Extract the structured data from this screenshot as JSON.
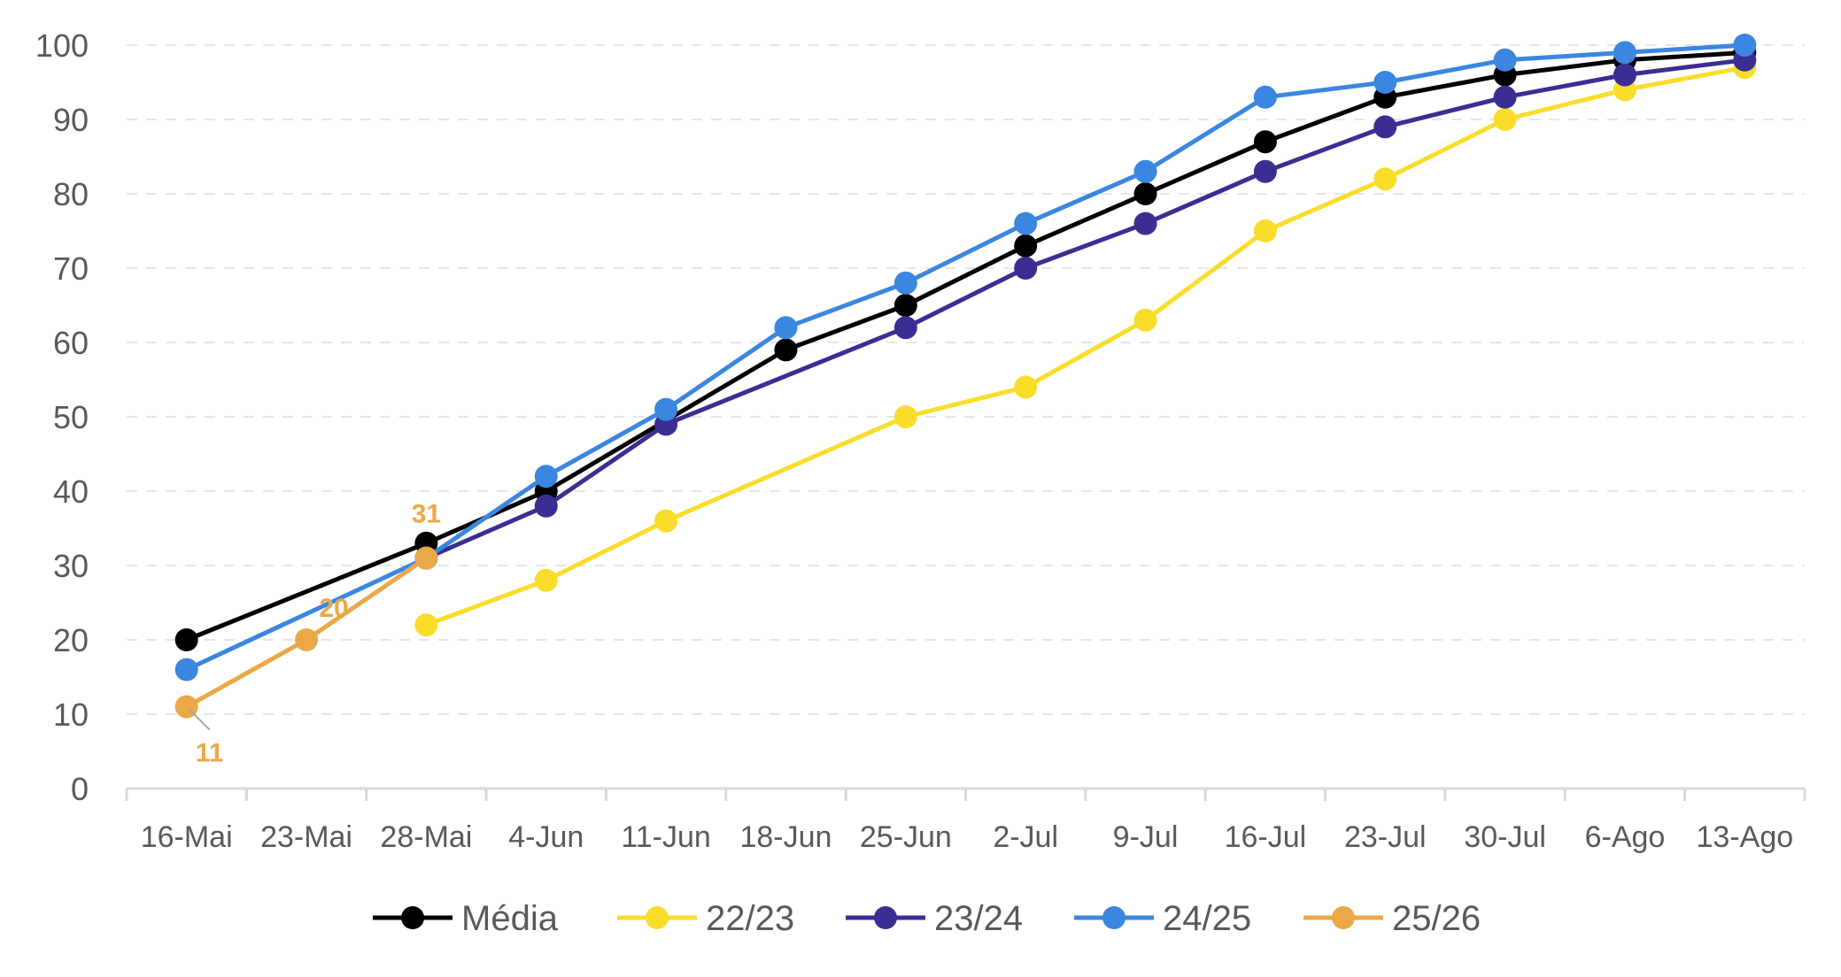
{
  "chart_data": {
    "type": "line",
    "title": "",
    "xlabel": "",
    "ylabel": "",
    "categories": [
      "16-Mai",
      "23-Mai",
      "28-Mai",
      "4-Jun",
      "11-Jun",
      "18-Jun",
      "25-Jun",
      "2-Jul",
      "9-Jul",
      "16-Jul",
      "23-Jul",
      "30-Jul",
      "6-Ago",
      "13-Ago"
    ],
    "ylim": [
      0,
      100
    ],
    "yticks": [
      "0",
      "10",
      "20",
      "30",
      "40",
      "50",
      "60",
      "70",
      "80",
      "90",
      "100"
    ],
    "grid": true,
    "legend": "bottom",
    "series": [
      {
        "name": "Média",
        "color": "#000000",
        "values": [
          20,
          null,
          33,
          40,
          null,
          59,
          65,
          73,
          80,
          87,
          93,
          96,
          98,
          99
        ]
      },
      {
        "name": "22/23",
        "color": "#FADD2B",
        "values": [
          null,
          null,
          22,
          28,
          36,
          null,
          50,
          54,
          63,
          75,
          82,
          90,
          94,
          97
        ]
      },
      {
        "name": "23/24",
        "color": "#3B2E92",
        "values": [
          null,
          null,
          31,
          38,
          49,
          null,
          62,
          70,
          76,
          83,
          89,
          93,
          96,
          98
        ]
      },
      {
        "name": "24/25",
        "color": "#3B86E0",
        "values": [
          16,
          null,
          31,
          42,
          51,
          62,
          68,
          76,
          83,
          93,
          95,
          98,
          99,
          100
        ]
      },
      {
        "name": "25/26",
        "color": "#EBA847",
        "values": [
          11,
          20,
          31,
          null,
          null,
          null,
          null,
          null,
          null,
          null,
          null,
          null,
          null,
          null
        ]
      }
    ],
    "annotations": [
      {
        "series": "25/26",
        "category": "16-Mai",
        "text": "11"
      },
      {
        "series": "25/26",
        "category": "23-Mai",
        "text": "20"
      },
      {
        "series": "25/26",
        "category": "28-Mai",
        "text": "31"
      }
    ]
  }
}
